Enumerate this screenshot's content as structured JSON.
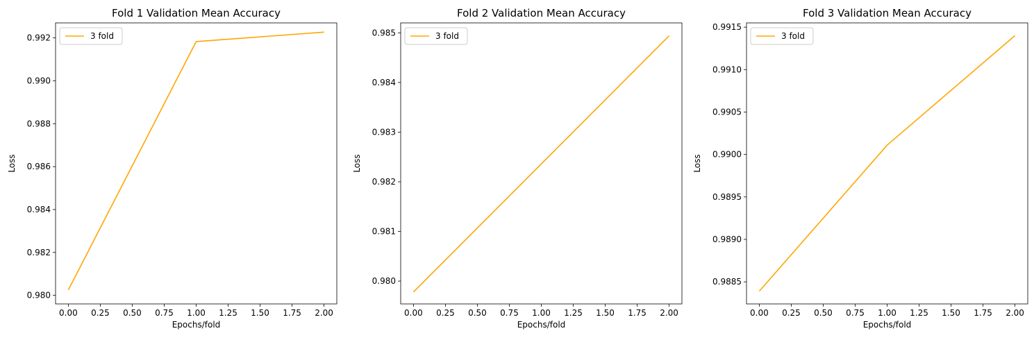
{
  "chart_data": [
    {
      "type": "line",
      "title": "Fold 1 Validation Mean Accuracy",
      "xlabel": "Epochs/fold",
      "ylabel": "Loss",
      "xlim": [
        -0.1,
        2.1
      ],
      "ylim": [
        0.9796,
        0.9927
      ],
      "xticks": [
        "0.00",
        "0.25",
        "0.50",
        "0.75",
        "1.00",
        "1.25",
        "1.50",
        "1.75",
        "2.00"
      ],
      "yticks": [
        "0.980",
        "0.982",
        "0.984",
        "0.986",
        "0.988",
        "0.990",
        "0.992"
      ],
      "legend_position": "upper-left",
      "grid": false,
      "series": [
        {
          "name": "3 fold",
          "color": "#ffa500",
          "x": [
            0,
            1,
            2
          ],
          "y": [
            0.98025,
            0.99183,
            0.99227
          ]
        }
      ]
    },
    {
      "type": "line",
      "title": "Fold 2 Validation Mean Accuracy",
      "xlabel": "Epochs/fold",
      "ylabel": "Loss",
      "xlim": [
        -0.1,
        2.1
      ],
      "ylim": [
        0.97954,
        0.9852
      ],
      "xticks": [
        "0.00",
        "0.25",
        "0.50",
        "0.75",
        "1.00",
        "1.25",
        "1.50",
        "1.75",
        "2.00"
      ],
      "yticks": [
        "0.980",
        "0.981",
        "0.982",
        "0.983",
        "0.984",
        "0.985"
      ],
      "legend_position": "upper-left",
      "grid": false,
      "series": [
        {
          "name": "3 fold",
          "color": "#ffa500",
          "x": [
            0,
            1,
            2
          ],
          "y": [
            0.97978,
            0.98236,
            0.98494
          ]
        }
      ]
    },
    {
      "type": "line",
      "title": "Fold 3 Validation Mean Accuracy",
      "xlabel": "Epochs/fold",
      "ylabel": "Loss",
      "xlim": [
        -0.1,
        2.1
      ],
      "ylim": [
        0.98824,
        0.99155
      ],
      "xticks": [
        "0.00",
        "0.25",
        "0.50",
        "0.75",
        "1.00",
        "1.25",
        "1.50",
        "1.75",
        "2.00"
      ],
      "yticks": [
        "0.9885",
        "0.9890",
        "0.9895",
        "0.9900",
        "0.9905",
        "0.9910",
        "0.9915"
      ],
      "legend_position": "upper-left",
      "grid": false,
      "series": [
        {
          "name": "3 fold",
          "color": "#ffa500",
          "x": [
            0,
            1,
            2
          ],
          "y": [
            0.98839,
            0.99011,
            0.9914
          ]
        }
      ]
    }
  ]
}
